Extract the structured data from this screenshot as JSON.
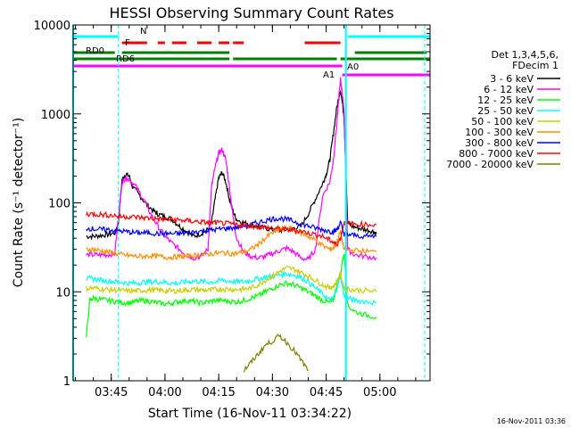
{
  "chart_data": {
    "type": "line",
    "title": "HESSI Observing Summary Count Rates",
    "xlabel": "Start Time (16-Nov-11 03:34:22)",
    "ylabel": "Count Rate (s⁻¹ detector⁻¹)",
    "y_scale": "log",
    "ylim": [
      1,
      10000
    ],
    "xlim": [
      "03:34:22",
      "05:14:00"
    ],
    "x_ticks": [
      "03:45",
      "04:00",
      "04:15",
      "04:30",
      "04:45",
      "05:00"
    ],
    "y_ticks": [
      "1",
      "10",
      "100",
      "1000",
      "10000"
    ],
    "grid": false,
    "legend_position": "right",
    "legend_header": [
      "Det 1,3,4,5,6,",
      "FDecim 1"
    ],
    "footer_date": "16-Nov-2011 03:36",
    "series": [
      {
        "name": "3 - 6 keV",
        "color": "#000000",
        "x": [
          "03:38",
          "03:40",
          "03:42",
          "03:44",
          "03:46",
          "03:47",
          "03:48",
          "03:49",
          "03:50",
          "03:51",
          "03:53",
          "03:55",
          "03:57",
          "03:58",
          "04:00",
          "04:02",
          "04:04",
          "04:06",
          "04:08",
          "04:10",
          "04:12",
          "04:13",
          "04:14",
          "04:15",
          "04:16",
          "04:17",
          "04:18",
          "04:19",
          "04:20",
          "04:22",
          "04:24",
          "04:26",
          "04:28",
          "04:30",
          "04:32",
          "04:34",
          "04:36",
          "04:38",
          "04:40",
          "04:42",
          "04:44",
          "04:45",
          "04:46",
          "04:47",
          "04:48",
          "04:49",
          "04:50",
          "04:51",
          "04:52",
          "04:54",
          "04:56",
          "04:58",
          "04:59"
        ],
        "y": [
          42,
          42,
          43,
          44,
          46,
          60,
          180,
          210,
          200,
          150,
          120,
          95,
          80,
          75,
          70,
          65,
          55,
          48,
          42,
          45,
          50,
          60,
          110,
          190,
          220,
          170,
          110,
          80,
          65,
          60,
          56,
          54,
          52,
          50,
          49,
          50,
          52,
          55,
          75,
          110,
          165,
          210,
          300,
          600,
          1200,
          1900,
          950,
          60,
          55,
          52,
          50,
          48,
          45
        ]
      },
      {
        "name": "6 - 12 keV",
        "color": "#ff00ff",
        "x": [
          "03:38",
          "03:40",
          "03:42",
          "03:44",
          "03:46",
          "03:48",
          "03:49",
          "03:50",
          "03:52",
          "03:54",
          "03:56",
          "03:58",
          "04:00",
          "04:02",
          "04:04",
          "04:06",
          "04:08",
          "04:10",
          "04:12",
          "04:13",
          "04:14",
          "04:15",
          "04:16",
          "04:17",
          "04:18",
          "04:19",
          "04:20",
          "04:22",
          "04:24",
          "04:26",
          "04:28",
          "04:30",
          "04:32",
          "04:34",
          "04:36",
          "04:38",
          "04:40",
          "04:42",
          "04:44",
          "04:46",
          "04:47",
          "04:48",
          "04:49",
          "04:50",
          "04:51",
          "04:53",
          "04:56",
          "04:59"
        ],
        "y": [
          26,
          26,
          26,
          26,
          27,
          170,
          190,
          185,
          150,
          110,
          75,
          55,
          42,
          35,
          30,
          26,
          24,
          25,
          30,
          150,
          250,
          360,
          400,
          300,
          150,
          70,
          40,
          28,
          25,
          24,
          25,
          27,
          29,
          31,
          28,
          24,
          23,
          30,
          120,
          170,
          300,
          800,
          2500,
          1100,
          30,
          26,
          25,
          24
        ]
      },
      {
        "name": "12 - 25 keV",
        "color": "#00ff00",
        "x": [
          "03:38",
          "03:39",
          "03:40",
          "03:42",
          "03:44",
          "03:46",
          "03:48",
          "03:50",
          "03:52",
          "03:54",
          "03:56",
          "03:58",
          "04:00",
          "04:02",
          "04:04",
          "04:06",
          "04:08",
          "04:10",
          "04:12",
          "04:14",
          "04:16",
          "04:18",
          "04:20",
          "04:22",
          "04:24",
          "04:26",
          "04:28",
          "04:30",
          "04:32",
          "04:34",
          "04:36",
          "04:38",
          "04:40",
          "04:42",
          "04:44",
          "04:46",
          "04:47",
          "04:48",
          "04:49",
          "04:50",
          "04:51",
          "04:53",
          "04:56",
          "04:59"
        ],
        "y": [
          3,
          8,
          8.5,
          8.2,
          8,
          7.8,
          7.6,
          7.5,
          7.8,
          8,
          7.8,
          7.5,
          7.3,
          7.5,
          7.8,
          8,
          7.8,
          7.5,
          7.7,
          8,
          8,
          7.8,
          7.7,
          8,
          8.5,
          9,
          10,
          11,
          12,
          12.5,
          12,
          11,
          10,
          9,
          8,
          7.5,
          8,
          12,
          16,
          28,
          7,
          6,
          5.5,
          5.2
        ]
      },
      {
        "name": "25 - 50 keV",
        "color": "#00ffff",
        "x": [
          "03:38",
          "03:40",
          "03:42",
          "03:44",
          "03:46",
          "03:48",
          "03:50",
          "03:52",
          "03:54",
          "03:56",
          "03:58",
          "04:00",
          "04:02",
          "04:04",
          "04:06",
          "04:08",
          "04:10",
          "04:12",
          "04:14",
          "04:16",
          "04:18",
          "04:20",
          "04:22",
          "04:24",
          "04:26",
          "04:28",
          "04:30",
          "04:32",
          "04:34",
          "04:36",
          "04:38",
          "04:40",
          "04:42",
          "04:44",
          "04:46",
          "04:47",
          "04:48",
          "04:49",
          "04:50",
          "04:51",
          "04:53",
          "04:56",
          "04:59"
        ],
        "y": [
          14,
          14,
          13.5,
          13.2,
          13,
          12.8,
          12.5,
          12.5,
          12.8,
          13,
          13,
          12.8,
          12.5,
          12.5,
          13,
          13.2,
          13,
          12.8,
          13,
          13.5,
          13.2,
          13,
          13,
          13.5,
          14,
          14.5,
          15,
          15.5,
          16,
          15.5,
          14.5,
          13,
          11,
          9.5,
          8,
          8.5,
          11,
          15,
          9,
          8.5,
          8,
          7.8,
          7.5
        ]
      },
      {
        "name": "50 - 100 keV",
        "color": "#cccc00",
        "x": [
          "03:38",
          "03:40",
          "03:42",
          "03:44",
          "03:46",
          "03:48",
          "03:50",
          "03:52",
          "03:54",
          "03:56",
          "03:58",
          "04:00",
          "04:02",
          "04:04",
          "04:06",
          "04:08",
          "04:10",
          "04:12",
          "04:14",
          "04:16",
          "04:18",
          "04:20",
          "04:22",
          "04:24",
          "04:26",
          "04:28",
          "04:30",
          "04:32",
          "04:34",
          "04:36",
          "04:38",
          "04:40",
          "04:42",
          "04:44",
          "04:46",
          "04:47",
          "04:48",
          "04:49",
          "04:50",
          "04:51",
          "04:53",
          "04:56",
          "04:59"
        ],
        "y": [
          11,
          11,
          10.8,
          10.6,
          10.5,
          10.3,
          10.2,
          10.2,
          10.4,
          10.5,
          10.4,
          10.3,
          10.2,
          10.3,
          10.5,
          10.6,
          10.5,
          10.4,
          10.6,
          10.8,
          10.7,
          10.6,
          10.7,
          11,
          12,
          13.5,
          15,
          17,
          18.5,
          18,
          16.5,
          15,
          13.5,
          12,
          11,
          11.5,
          13,
          16,
          11,
          10.8,
          10.5,
          10.3,
          10
        ]
      },
      {
        "name": "100 - 300 keV",
        "color": "#ff8c00",
        "x": [
          "03:38",
          "03:40",
          "03:42",
          "03:44",
          "03:46",
          "03:48",
          "03:50",
          "03:52",
          "03:54",
          "03:56",
          "03:58",
          "04:00",
          "04:02",
          "04:04",
          "04:06",
          "04:08",
          "04:10",
          "04:12",
          "04:14",
          "04:16",
          "04:18",
          "04:20",
          "04:22",
          "04:24",
          "04:26",
          "04:28",
          "04:30",
          "04:32",
          "04:34",
          "04:36",
          "04:38",
          "04:40",
          "04:42",
          "04:44",
          "04:46",
          "04:47",
          "04:48",
          "04:49",
          "04:50",
          "04:51",
          "04:53",
          "04:56",
          "04:59"
        ],
        "y": [
          30,
          30,
          29,
          28,
          27,
          26,
          25.5,
          25,
          25,
          25.5,
          25,
          24.5,
          24.5,
          24.8,
          25,
          25.5,
          26,
          26.5,
          27,
          27.5,
          27,
          27,
          28,
          30,
          34,
          40,
          46,
          50,
          52,
          50,
          46,
          42,
          38,
          33,
          30,
          31,
          36,
          48,
          30,
          29.5,
          29,
          28.5,
          28
        ]
      },
      {
        "name": "300 - 800 keV",
        "color": "#0000ff",
        "x": [
          "03:38",
          "03:40",
          "03:42",
          "03:44",
          "03:46",
          "03:48",
          "03:50",
          "03:52",
          "03:54",
          "03:56",
          "03:58",
          "04:00",
          "04:02",
          "04:04",
          "04:06",
          "04:08",
          "04:10",
          "04:12",
          "04:14",
          "04:16",
          "04:18",
          "04:20",
          "04:22",
          "04:24",
          "04:26",
          "04:28",
          "04:30",
          "04:32",
          "04:34",
          "04:36",
          "04:38",
          "04:40",
          "04:42",
          "04:44",
          "04:46",
          "04:47",
          "04:48",
          "04:49",
          "04:50",
          "04:51",
          "04:53",
          "04:56",
          "04:59"
        ],
        "y": [
          52,
          51,
          50,
          50,
          49,
          48,
          47,
          46,
          46,
          46,
          45,
          45,
          45,
          45,
          46,
          47,
          48,
          49,
          50,
          51,
          52,
          53,
          55,
          57,
          60,
          63,
          66,
          67,
          65,
          62,
          58,
          55,
          52,
          50,
          48,
          47,
          50,
          60,
          45,
          44,
          43,
          42,
          42
        ]
      },
      {
        "name": "800 - 7000 keV",
        "color": "#ff0000",
        "x": [
          "03:38",
          "03:40",
          "03:42",
          "03:44",
          "03:46",
          "03:48",
          "03:50",
          "03:52",
          "03:54",
          "03:56",
          "03:58",
          "04:00",
          "04:02",
          "04:04",
          "04:06",
          "04:08",
          "04:10",
          "04:12",
          "04:14",
          "04:16",
          "04:18",
          "04:20",
          "04:22",
          "04:24",
          "04:26",
          "04:28",
          "04:30",
          "04:32",
          "04:34",
          "04:36",
          "04:38",
          "04:40",
          "04:42",
          "04:44",
          "04:46",
          "04:47",
          "04:48",
          "04:49",
          "04:50",
          "04:51",
          "04:53",
          "04:56",
          "04:59"
        ],
        "y": [
          75,
          75,
          74,
          73,
          72,
          70,
          70,
          69,
          68,
          67,
          66,
          65,
          65,
          64,
          63,
          62,
          61,
          60,
          60,
          59,
          58,
          57,
          56,
          55,
          54,
          53,
          52,
          51,
          50,
          49,
          48,
          46,
          44,
          42,
          38,
          36,
          34,
          40,
          60,
          58,
          58,
          57,
          57
        ]
      },
      {
        "name": "7000 - 20000 keV",
        "color": "#808000",
        "x": [
          "04:22",
          "04:24",
          "04:26",
          "04:28",
          "04:30",
          "04:32",
          "04:34",
          "04:36",
          "04:38",
          "04:40"
        ],
        "y": [
          1.3,
          1.6,
          2.0,
          2.5,
          2.8,
          3.2,
          2.7,
          2.2,
          1.7,
          1.3
        ]
      }
    ],
    "flag_rows": [
      {
        "label": "N",
        "color": "#00ffff",
        "segments": [
          [
            "03:34:22",
            "03:47:00"
          ],
          [
            "04:51:00",
            "05:14:00"
          ]
        ]
      },
      {
        "label": "F",
        "color": "#ff0000",
        "segments": [
          [
            "03:48:00",
            "03:55:00"
          ],
          [
            "03:58:00",
            "04:00:00"
          ],
          [
            "04:02:00",
            "04:06:00"
          ],
          [
            "04:09:00",
            "04:13:00"
          ],
          [
            "04:15:00",
            "04:18:00"
          ],
          [
            "04:19:00",
            "04:22:00"
          ],
          [
            "04:39:00",
            "04:49:00"
          ]
        ]
      },
      {
        "label": "RD0",
        "color": "#008000",
        "segments": [
          [
            "03:34:22",
            "03:46:00"
          ],
          [
            "03:48:00",
            "04:18:00"
          ],
          [
            "04:53:00",
            "05:13:00"
          ]
        ]
      },
      {
        "label": "RD6",
        "color": "#008000",
        "segments": [
          [
            "03:34:22",
            "04:18:00"
          ],
          [
            "04:19:00",
            "04:48:00"
          ],
          [
            "04:49:00",
            "05:14:00"
          ]
        ]
      },
      {
        "label": "A1",
        "color": "#ff00ff",
        "segments": [
          [
            "03:34:22",
            "04:49:30"
          ]
        ]
      },
      {
        "label": "A0",
        "color": "#ff00ff",
        "segments": [
          [
            "04:49:30",
            "05:14:00"
          ]
        ]
      }
    ],
    "markers": [
      {
        "x": "03:34:22",
        "color": "#00ffff"
      },
      {
        "x": "03:47:00",
        "color": "#00ffff"
      },
      {
        "x": "04:50:30",
        "color": "#00ffff"
      },
      {
        "x": "05:12:30",
        "color": "#00ffff"
      }
    ]
  }
}
